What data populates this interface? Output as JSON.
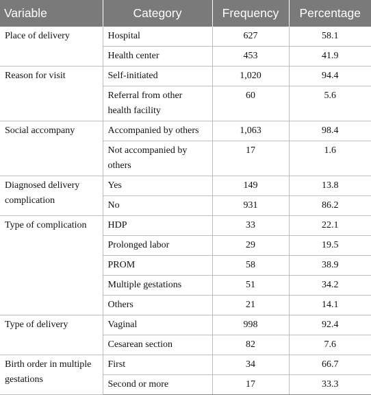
{
  "table": {
    "headers": {
      "variable": "Variable",
      "category": "Category",
      "frequency": "Frequency",
      "percentage": "Percentage"
    },
    "groups": [
      {
        "variable": "Place of delivery",
        "rows": [
          {
            "category": "Hospital",
            "frequency": "627",
            "percentage": "58.1"
          },
          {
            "category": "Health center",
            "frequency": "453",
            "percentage": "41.9"
          }
        ]
      },
      {
        "variable": "Reason for visit",
        "rows": [
          {
            "category": "Self-initiated",
            "frequency": "1,020",
            "percentage": "94.4"
          },
          {
            "category": "Referral from other health facility",
            "frequency": "60",
            "percentage": "5.6"
          }
        ]
      },
      {
        "variable": "Social accompany",
        "rows": [
          {
            "category": "Accompanied by others",
            "frequency": "1,063",
            "percentage": "98.4"
          },
          {
            "category": "Not accompanied by others",
            "frequency": "17",
            "percentage": "1.6"
          }
        ]
      },
      {
        "variable": "Diagnosed delivery complication",
        "rows": [
          {
            "category": "Yes",
            "frequency": "149",
            "percentage": "13.8"
          },
          {
            "category": "No",
            "frequency": "931",
            "percentage": "86.2"
          }
        ]
      },
      {
        "variable": "Type of complication",
        "rows": [
          {
            "category": "HDP",
            "frequency": "33",
            "percentage": "22.1"
          },
          {
            "category": "Prolonged labor",
            "frequency": "29",
            "percentage": "19.5"
          },
          {
            "category": "PROM",
            "frequency": "58",
            "percentage": "38.9"
          },
          {
            "category": "Multiple gestations",
            "frequency": "51",
            "percentage": "34.2"
          },
          {
            "category": "Others",
            "frequency": "21",
            "percentage": "14.1"
          }
        ]
      },
      {
        "variable": "Type of delivery",
        "rows": [
          {
            "category": "Vaginal",
            "frequency": "998",
            "percentage": "92.4"
          },
          {
            "category": "Cesarean section",
            "frequency": "82",
            "percentage": "7.6"
          }
        ]
      },
      {
        "variable": "Birth order in multiple gestations",
        "rows": [
          {
            "category": "First",
            "frequency": "34",
            "percentage": "66.7"
          },
          {
            "category": "Second or more",
            "frequency": "17",
            "percentage": "33.3"
          }
        ]
      }
    ]
  }
}
